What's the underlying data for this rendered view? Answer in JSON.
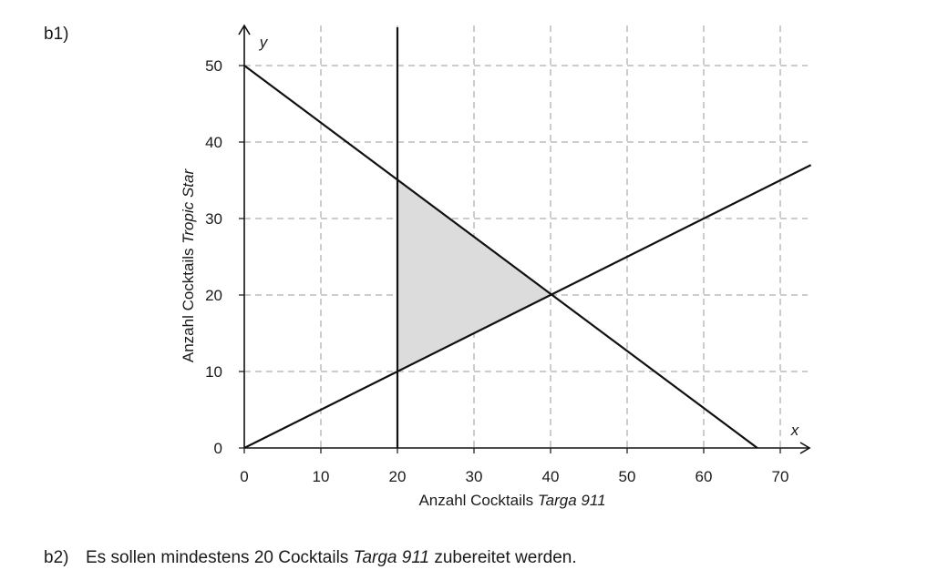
{
  "part_b1_label": "b1)",
  "part_b2": {
    "number": "b2)",
    "text_before": "Es sollen mindestens 20 Cocktails ",
    "text_italic": "Targa 911",
    "text_after": " zubereitet werden."
  },
  "chart_data": {
    "type": "line",
    "title": "",
    "x_axis": {
      "name": "x",
      "label_plain": "Anzahl Cocktails ",
      "label_italic": "Targa 911",
      "range": [
        0,
        74
      ],
      "ticks": [
        0,
        10,
        20,
        30,
        40,
        50,
        60,
        70
      ],
      "grid": true
    },
    "y_axis": {
      "name": "y",
      "label_plain": "Anzahl Cocktails ",
      "label_italic": "Tropic Star",
      "range": [
        0,
        55
      ],
      "ticks": [
        0,
        10,
        20,
        30,
        40,
        50
      ],
      "grid": true
    },
    "series": [
      {
        "points": [
          [
            0,
            50
          ],
          [
            67,
            0
          ]
        ]
      },
      {
        "points": [
          [
            0,
            0
          ],
          [
            74,
            37
          ]
        ]
      },
      {
        "points": [
          [
            20,
            0
          ],
          [
            20,
            55
          ]
        ]
      }
    ],
    "shaded_region": {
      "fill": "#dcdcdc",
      "vertices": [
        [
          20,
          35
        ],
        [
          40,
          20
        ],
        [
          20,
          10
        ]
      ]
    },
    "line_color": "#111111",
    "grid_color": "#9a9a9a"
  }
}
